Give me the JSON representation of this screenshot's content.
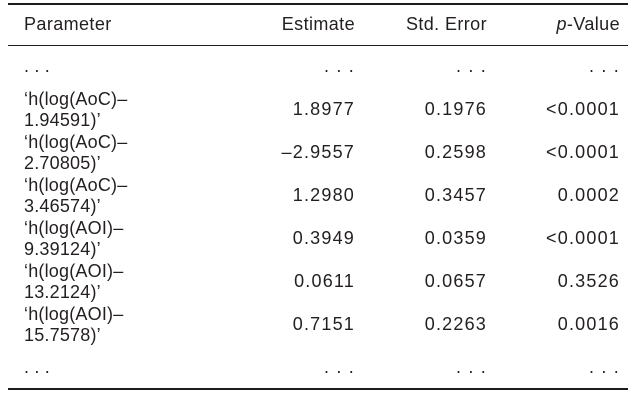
{
  "colors": {
    "text": "#231f20",
    "rule": "#1c1c1c",
    "background": "#ffffff"
  },
  "table": {
    "header": {
      "parameter": "Parameter",
      "estimate": "Estimate",
      "std_error": "Std. Error",
      "p_value_italic": "p",
      "p_value_rest": "-Value"
    },
    "rows": [
      {
        "parameter": ". . .",
        "estimate": ". . .",
        "std_error": ". . .",
        "p_value": ". . ."
      },
      {
        "parameter": "‘h(log(AoC)–1.94591)’",
        "estimate": "1.8977",
        "std_error": "0.1976",
        "p_value": "<0.0001"
      },
      {
        "parameter": "‘h(log(AoC)–2.70805)’",
        "estimate": "–2.9557",
        "std_error": "0.2598",
        "p_value": "<0.0001"
      },
      {
        "parameter": "‘h(log(AoC)–3.46574)’",
        "estimate": "1.2980",
        "std_error": "0.3457",
        "p_value": "0.0002"
      },
      {
        "parameter": "‘h(log(AOI)–9.39124)’",
        "estimate": "0.3949",
        "std_error": "0.0359",
        "p_value": "<0.0001"
      },
      {
        "parameter": "‘h(log(AOI)–13.2124)’",
        "estimate": "0.0611",
        "std_error": "0.0657",
        "p_value": "0.3526"
      },
      {
        "parameter": "‘h(log(AOI)–15.7578)’",
        "estimate": "0.7151",
        "std_error": "0.2263",
        "p_value": "0.0016"
      },
      {
        "parameter": ". . .",
        "estimate": ". . .",
        "std_error": ". . .",
        "p_value": ". . ."
      }
    ]
  }
}
